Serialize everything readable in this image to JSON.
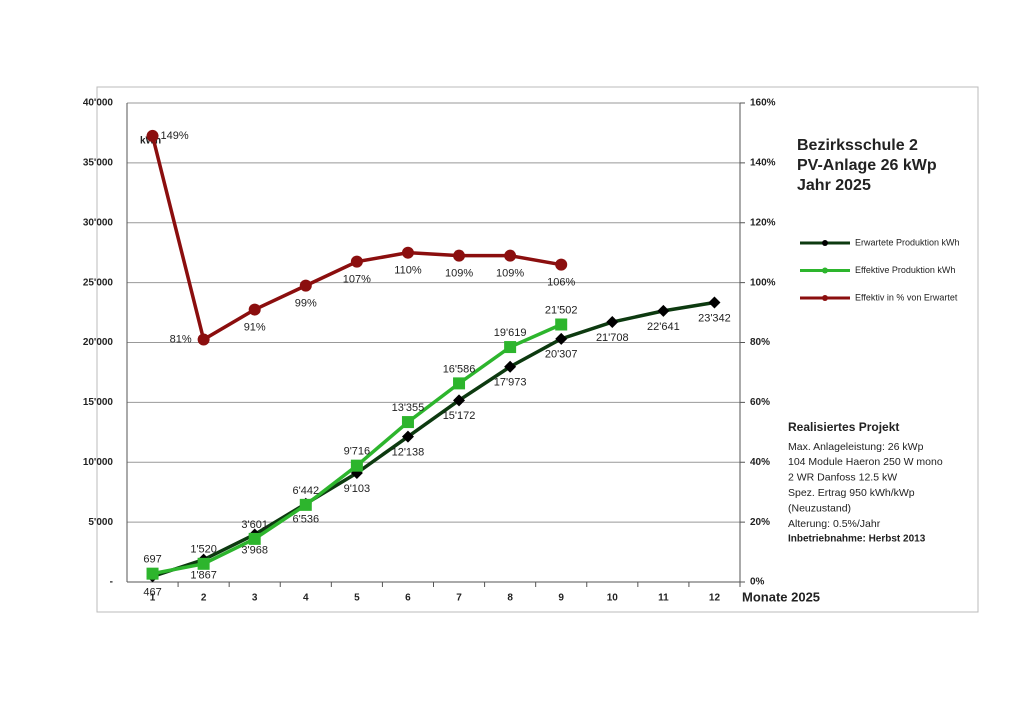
{
  "chart_data": {
    "type": "line",
    "title": [
      "Bezirksschule 2",
      "PV-Anlage 26 kWp",
      "Jahr 2025"
    ],
    "y_label": "kWh",
    "x_label": "Monate 2025",
    "categories": [
      "1",
      "2",
      "3",
      "4",
      "5",
      "6",
      "7",
      "8",
      "9",
      "10",
      "11",
      "12"
    ],
    "ylim": [
      0,
      40000
    ],
    "yticks": [
      {
        "value": 0,
        "label": "-"
      },
      {
        "value": 5000,
        "label": "5'000"
      },
      {
        "value": 10000,
        "label": "10'000"
      },
      {
        "value": 15000,
        "label": "15'000"
      },
      {
        "value": 20000,
        "label": "20'000"
      },
      {
        "value": 25000,
        "label": "25'000"
      },
      {
        "value": 30000,
        "label": "30'000"
      },
      {
        "value": 35000,
        "label": "35'000"
      },
      {
        "value": 40000,
        "label": "40'000"
      }
    ],
    "y2lim": [
      0,
      160
    ],
    "y2ticks": [
      {
        "value": 0,
        "label": "0%"
      },
      {
        "value": 20,
        "label": "20%"
      },
      {
        "value": 40,
        "label": "40%"
      },
      {
        "value": 60,
        "label": "60%"
      },
      {
        "value": 80,
        "label": "80%"
      },
      {
        "value": 100,
        "label": "100%"
      },
      {
        "value": 120,
        "label": "120%"
      },
      {
        "value": 140,
        "label": "140%"
      },
      {
        "value": 160,
        "label": "160%"
      }
    ],
    "grid": true,
    "series": [
      {
        "name": "Erwartete Produktion kWh",
        "color": "#000000",
        "line_color": "#0d3a10",
        "marker": "diamond",
        "values": [
          467,
          1867,
          3968,
          6536,
          9103,
          12138,
          15172,
          17973,
          20307,
          21708,
          22641,
          23342
        ],
        "value_labels": [
          "467",
          "1'867",
          "3'968",
          "6'536",
          "9'103",
          "12'138",
          "15'172",
          "17'973",
          "20'307",
          "21'708",
          "22'641",
          "23'342"
        ]
      },
      {
        "name": "Effektive Produktion kWh",
        "color": "#2db52d",
        "line_color": "#2db52d",
        "marker": "square",
        "values": [
          697,
          1520,
          3601,
          6442,
          9716,
          13355,
          16586,
          19619,
          21502,
          null,
          null,
          null
        ],
        "value_labels": [
          "697",
          "1'520",
          "3'601",
          "6'442",
          "9'716",
          "13'355",
          "16'586",
          "19'619",
          "21'502",
          null,
          null,
          null
        ]
      },
      {
        "name": "Effektiv in % von Erwartet",
        "color": "#8b0e0e",
        "line_color": "#8b0e0e",
        "marker": "circle",
        "axis": "y2",
        "values": [
          149,
          81,
          91,
          99,
          107,
          110,
          109,
          109,
          106,
          null,
          null,
          null
        ],
        "value_labels": [
          "149%",
          "81%",
          "91%",
          "99%",
          "107%",
          "110%",
          "109%",
          "109%",
          "106%",
          null,
          null,
          null
        ]
      }
    ],
    "info": {
      "heading": "Realisiertes Projekt",
      "lines": [
        "Max. Anlageleistung: 26 kWp",
        "104 Module Haeron 250 W mono",
        "2 WR Danfoss 12.5 kW",
        "Spez. Ertrag 950 kWh/kWp",
        "(Neuzustand)",
        "Alterung: 0.5%/Jahr"
      ],
      "footer": "Inbetriebnahme: Herbst 2013"
    }
  }
}
